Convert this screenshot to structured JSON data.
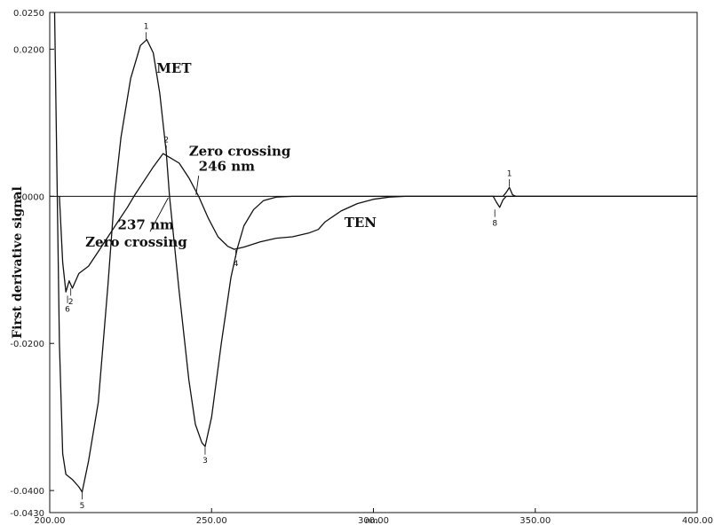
{
  "chart_data": {
    "type": "line",
    "xlabel": "nm.",
    "ylabel": "First derivative signal",
    "xlim": [
      200,
      400
    ],
    "ylim": [
      -0.043,
      0.025
    ],
    "x_ticks": [
      "200.00",
      "250.00",
      "300.00",
      "350.00",
      "400.00"
    ],
    "y_ticks": [
      {
        "value": 0.025,
        "label": "0.0250"
      },
      {
        "value": 0.02,
        "label": "0.0200"
      },
      {
        "value": 0.0,
        "label": "0.0000"
      },
      {
        "value": -0.02,
        "label": "-0.0200"
      },
      {
        "value": -0.04,
        "label": "-0.0400"
      },
      {
        "value": -0.043,
        "label": "-0.0430"
      }
    ],
    "series": [
      {
        "name": "MET",
        "points": [
          [
            201.5,
            0.025
          ],
          [
            202,
            0.01
          ],
          [
            203,
            -0.02
          ],
          [
            204,
            -0.035
          ],
          [
            205,
            -0.0378
          ],
          [
            207,
            -0.0385
          ],
          [
            209,
            -0.0395
          ],
          [
            210,
            -0.0402
          ],
          [
            212,
            -0.036
          ],
          [
            215,
            -0.028
          ],
          [
            218,
            -0.012
          ],
          [
            220,
            0
          ],
          [
            222,
            0.008
          ],
          [
            225,
            0.016
          ],
          [
            228,
            0.0205
          ],
          [
            230,
            0.0213
          ],
          [
            232,
            0.0195
          ],
          [
            234,
            0.014
          ],
          [
            236,
            0.006
          ],
          [
            237,
            0
          ],
          [
            240,
            -0.013
          ],
          [
            243,
            -0.025
          ],
          [
            245,
            -0.031
          ],
          [
            247,
            -0.0335
          ],
          [
            248,
            -0.034
          ],
          [
            250,
            -0.03
          ],
          [
            253,
            -0.02
          ],
          [
            256,
            -0.011
          ],
          [
            258,
            -0.007
          ],
          [
            260,
            -0.004
          ],
          [
            263,
            -0.0018
          ],
          [
            266,
            -0.0006
          ],
          [
            270,
            -0.0001
          ],
          [
            275,
            0
          ],
          [
            340,
            0
          ],
          [
            341,
            0.0005
          ],
          [
            342,
            0.0012
          ],
          [
            343,
            0.0002
          ],
          [
            344,
            0
          ],
          [
            400,
            0
          ]
        ]
      },
      {
        "name": "TEN",
        "points": [
          [
            203,
            0
          ],
          [
            204,
            -0.009
          ],
          [
            205,
            -0.013
          ],
          [
            206,
            -0.0115
          ],
          [
            207,
            -0.0125
          ],
          [
            209,
            -0.0105
          ],
          [
            212,
            -0.0095
          ],
          [
            215,
            -0.0075
          ],
          [
            218,
            -0.0055
          ],
          [
            221,
            -0.0035
          ],
          [
            224,
            -0.0015
          ],
          [
            226,
            0
          ],
          [
            229,
            0.002
          ],
          [
            232,
            0.004
          ],
          [
            235,
            0.0058
          ],
          [
            237,
            0.0053
          ],
          [
            240,
            0.0045
          ],
          [
            243,
            0.0025
          ],
          [
            246,
            0
          ],
          [
            249,
            -0.003
          ],
          [
            252,
            -0.0055
          ],
          [
            255,
            -0.0068
          ],
          [
            257,
            -0.0072
          ],
          [
            260,
            -0.0069
          ],
          [
            265,
            -0.0062
          ],
          [
            270,
            -0.0057
          ],
          [
            275,
            -0.0055
          ],
          [
            280,
            -0.005
          ],
          [
            283,
            -0.0045
          ],
          [
            285,
            -0.0035
          ],
          [
            290,
            -0.002
          ],
          [
            295,
            -0.001
          ],
          [
            300,
            -0.0004
          ],
          [
            305,
            -0.0001
          ],
          [
            310,
            0
          ],
          [
            337,
            0
          ],
          [
            338,
            -0.0008
          ],
          [
            339,
            -0.0015
          ],
          [
            340,
            -0.0005
          ],
          [
            341,
            0
          ],
          [
            400,
            0
          ]
        ]
      }
    ],
    "annotations": [
      {
        "text": "MET",
        "x": 233,
        "y": 0.0168
      },
      {
        "text": "TEN",
        "x": 291,
        "y": -0.0042
      },
      {
        "text": "Zero crossing",
        "x": 243,
        "y": 0.0055
      },
      {
        "text": "246 nm",
        "x": 246,
        "y": 0.0035
      },
      {
        "text": "237 nm",
        "x": 221,
        "y": -0.0045
      },
      {
        "text": "Zero crossing",
        "x": 211,
        "y": -0.0068
      }
    ],
    "peak_labels": [
      {
        "text": "1",
        "x": 229.8,
        "y": 0.0213
      },
      {
        "text": "2",
        "x": 236,
        "y": 0.0059
      },
      {
        "text": "3",
        "x": 248,
        "y": -0.0341
      },
      {
        "text": "4",
        "x": 257.5,
        "y": -0.0073
      },
      {
        "text": "5",
        "x": 210,
        "y": -0.0402
      },
      {
        "text": "6",
        "x": 205.5,
        "y": -0.0135
      },
      {
        "text": "2",
        "x": 206.5,
        "y": -0.0125
      },
      {
        "text": "8",
        "x": 337.5,
        "y": -0.0018
      },
      {
        "text": "1",
        "x": 342,
        "y": 0.0013
      }
    ],
    "grid": false,
    "legend": "none"
  }
}
